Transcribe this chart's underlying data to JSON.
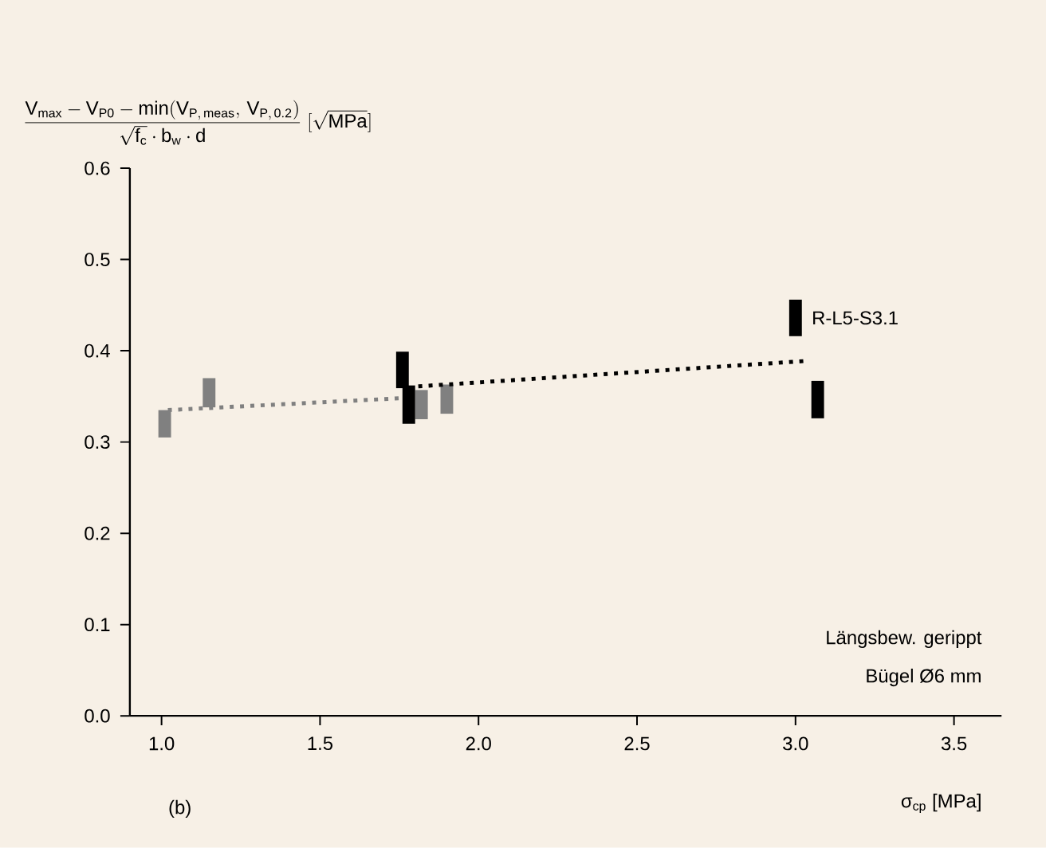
{
  "chart_data": {
    "type": "bar",
    "ylabel": "\\dfrac{\\mathrm{V_{max}-V_{P0}-min(V_{P,\\,meas},\\,V_{P,\\,0.2})}}{\\sqrt{\\mathrm{f_c}}\\cdot\\mathrm{b_w}\\cdot\\mathrm{d}}\\;[\\sqrt{\\mathrm{MPa}}]",
    "xlabel": "σ$_{cp}$ [MPa]",
    "series": [
      {
        "color": "#808080",
        "x": [
          1.01,
          1.15,
          1.82,
          1.9
        ],
        "base": [
          0.305,
          0.338,
          0.325,
          0.331
        ],
        "values": [
          0.03,
          0.032,
          0.032,
          0.032
        ]
      },
      {
        "color": "#000000",
        "x": [
          1.76,
          1.78,
          3.0,
          3.07
        ],
        "base": [
          0.359,
          0.32,
          0.416,
          0.326
        ],
        "values": [
          0.04,
          0.042,
          0.04,
          0.041
        ]
      },
      {
        "type": "line",
        "line_style": "dotted",
        "color": "#808080",
        "x": [
          1.02,
          1.755
        ],
        "values": [
          0.335,
          0.348
        ]
      },
      {
        "type": "line",
        "line_style": "dotted",
        "color": "#000000",
        "x": [
          1.81,
          3.04
        ],
        "values": [
          0.361,
          0.389
        ]
      }
    ],
    "xlim": [
      0.9,
      3.65
    ],
    "ylim": [
      0,
      0.6
    ],
    "xticks": [
      {
        "value": 1,
        "label": "1.0"
      },
      1.5,
      {
        "value": 2,
        "label": "2.0"
      },
      2.5,
      {
        "value": 3,
        "label": "3.0"
      },
      3.5
    ],
    "yticks": [
      {
        "value": 0,
        "label": "0.0"
      },
      0.1,
      0.2,
      0.3,
      0.4,
      0.5,
      0.6
    ],
    "annotations": [
      {
        "text": "R-L5-S3.1",
        "x": 3.0,
        "y": 0.436
      },
      "Längsbew. gerippt",
      "Bügel Ø6 mm",
      "(b)"
    ]
  }
}
